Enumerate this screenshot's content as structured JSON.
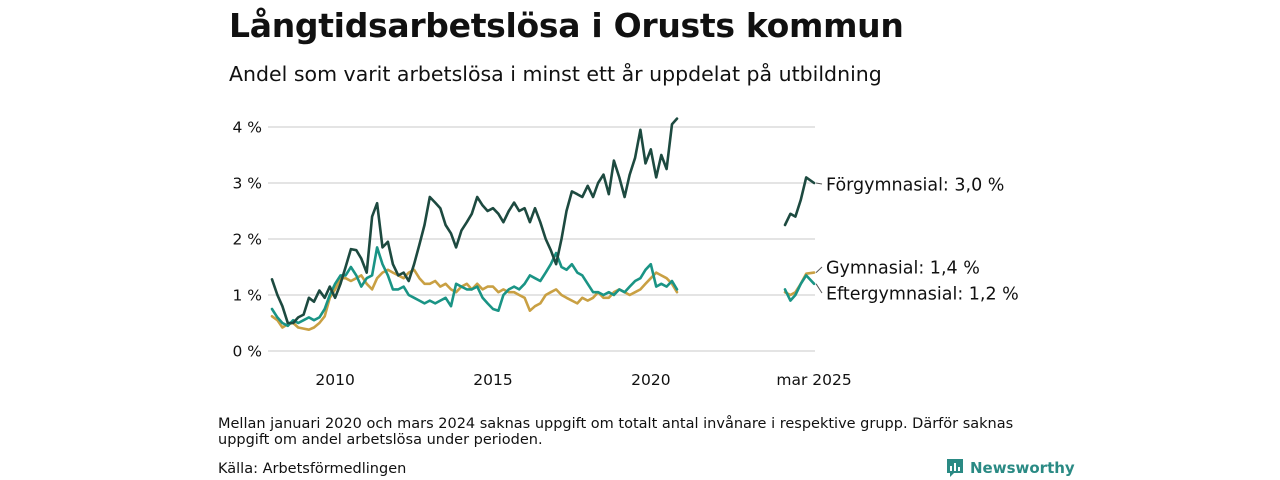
{
  "title": "Långtidsarbetslösa i Orusts kommun",
  "subtitle": "Andel som varit arbetslösa i minst ett år uppdelat på utbildning",
  "note": "Mellan januari 2020 och mars 2024 saknas uppgift om totalt antal invånare i respektive grupp. Därför saknas uppgift om andel arbetslösa under perioden.",
  "source": "Källa: Arbetsförmedlingen",
  "brand": {
    "name": "Newsworthy",
    "icon": "bar-chart-speech-bubble-icon",
    "color": "#2a8a84"
  },
  "chart_data": {
    "type": "line",
    "grid": "horizontal",
    "ylim": [
      0,
      4
    ],
    "y_ticks": [
      0,
      1,
      2,
      3,
      4
    ],
    "y_tick_labels": [
      "0 %",
      "1 %",
      "2 %",
      "3 %",
      "4 %"
    ],
    "x_ticks": [
      2010,
      2015,
      2020,
      2025.17
    ],
    "x_tick_labels": [
      "2010",
      "2015",
      "2020",
      "mar 2025"
    ],
    "xlim": [
      2008.0,
      2025.2
    ],
    "gap": [
      "2021-01",
      "2024-03"
    ],
    "series": [
      {
        "name": "Förgymnasial",
        "color": "#1d4a40",
        "end_label": "Förgymnasial: 3,0 %",
        "points": [
          [
            2008.0,
            1.28
          ],
          [
            2008.17,
            1.0
          ],
          [
            2008.33,
            0.8
          ],
          [
            2008.5,
            0.5
          ],
          [
            2008.67,
            0.5
          ],
          [
            2008.83,
            0.6
          ],
          [
            2009.0,
            0.65
          ],
          [
            2009.17,
            0.95
          ],
          [
            2009.33,
            0.88
          ],
          [
            2009.5,
            1.08
          ],
          [
            2009.67,
            0.95
          ],
          [
            2009.83,
            1.15
          ],
          [
            2010.0,
            0.95
          ],
          [
            2010.17,
            1.2
          ],
          [
            2010.33,
            1.5
          ],
          [
            2010.5,
            1.82
          ],
          [
            2010.67,
            1.8
          ],
          [
            2010.83,
            1.65
          ],
          [
            2011.0,
            1.4
          ],
          [
            2011.17,
            2.4
          ],
          [
            2011.33,
            2.64
          ],
          [
            2011.5,
            1.85
          ],
          [
            2011.67,
            1.95
          ],
          [
            2011.83,
            1.55
          ],
          [
            2012.0,
            1.35
          ],
          [
            2012.17,
            1.4
          ],
          [
            2012.33,
            1.25
          ],
          [
            2012.5,
            1.55
          ],
          [
            2012.67,
            1.9
          ],
          [
            2012.83,
            2.25
          ],
          [
            2013.0,
            2.75
          ],
          [
            2013.17,
            2.65
          ],
          [
            2013.33,
            2.55
          ],
          [
            2013.5,
            2.25
          ],
          [
            2013.67,
            2.1
          ],
          [
            2013.83,
            1.85
          ],
          [
            2014.0,
            2.15
          ],
          [
            2014.17,
            2.3
          ],
          [
            2014.33,
            2.45
          ],
          [
            2014.5,
            2.75
          ],
          [
            2014.67,
            2.6
          ],
          [
            2014.83,
            2.5
          ],
          [
            2015.0,
            2.55
          ],
          [
            2015.17,
            2.45
          ],
          [
            2015.33,
            2.3
          ],
          [
            2015.5,
            2.5
          ],
          [
            2015.67,
            2.65
          ],
          [
            2015.83,
            2.5
          ],
          [
            2016.0,
            2.55
          ],
          [
            2016.17,
            2.3
          ],
          [
            2016.33,
            2.55
          ],
          [
            2016.5,
            2.3
          ],
          [
            2016.67,
            2.0
          ],
          [
            2016.83,
            1.8
          ],
          [
            2017.0,
            1.55
          ],
          [
            2017.17,
            2.0
          ],
          [
            2017.33,
            2.5
          ],
          [
            2017.5,
            2.85
          ],
          [
            2017.67,
            2.8
          ],
          [
            2017.83,
            2.75
          ],
          [
            2018.0,
            2.95
          ],
          [
            2018.17,
            2.75
          ],
          [
            2018.33,
            3.0
          ],
          [
            2018.5,
            3.15
          ],
          [
            2018.67,
            2.8
          ],
          [
            2018.83,
            3.4
          ],
          [
            2019.0,
            3.1
          ],
          [
            2019.17,
            2.75
          ],
          [
            2019.33,
            3.15
          ],
          [
            2019.5,
            3.45
          ],
          [
            2019.67,
            3.95
          ],
          [
            2019.83,
            3.35
          ],
          [
            2020.0,
            3.6
          ],
          [
            2020.17,
            3.1
          ],
          [
            2020.33,
            3.5
          ],
          [
            2020.5,
            3.25
          ],
          [
            2020.67,
            4.05
          ],
          [
            2020.83,
            4.15
          ]
        ]
      },
      {
        "name": "Gymnasial",
        "color": "#c9a043",
        "end_label": "Gymnasial: 1,4 %",
        "points": [
          [
            2008.0,
            0.62
          ],
          [
            2008.17,
            0.55
          ],
          [
            2008.33,
            0.42
          ],
          [
            2008.5,
            0.48
          ],
          [
            2008.67,
            0.5
          ],
          [
            2008.83,
            0.42
          ],
          [
            2009.0,
            0.4
          ],
          [
            2009.17,
            0.38
          ],
          [
            2009.33,
            0.42
          ],
          [
            2009.5,
            0.5
          ],
          [
            2009.67,
            0.62
          ],
          [
            2009.83,
            0.95
          ],
          [
            2010.0,
            1.1
          ],
          [
            2010.17,
            1.3
          ],
          [
            2010.33,
            1.3
          ],
          [
            2010.5,
            1.25
          ],
          [
            2010.67,
            1.3
          ],
          [
            2010.83,
            1.35
          ],
          [
            2011.0,
            1.2
          ],
          [
            2011.17,
            1.1
          ],
          [
            2011.33,
            1.3
          ],
          [
            2011.5,
            1.4
          ],
          [
            2011.67,
            1.45
          ],
          [
            2011.83,
            1.4
          ],
          [
            2012.0,
            1.35
          ],
          [
            2012.17,
            1.3
          ],
          [
            2012.33,
            1.4
          ],
          [
            2012.5,
            1.45
          ],
          [
            2012.67,
            1.3
          ],
          [
            2012.83,
            1.2
          ],
          [
            2013.0,
            1.2
          ],
          [
            2013.17,
            1.25
          ],
          [
            2013.33,
            1.15
          ],
          [
            2013.5,
            1.2
          ],
          [
            2013.67,
            1.1
          ],
          [
            2013.83,
            1.05
          ],
          [
            2014.0,
            1.15
          ],
          [
            2014.17,
            1.2
          ],
          [
            2014.33,
            1.1
          ],
          [
            2014.5,
            1.2
          ],
          [
            2014.67,
            1.1
          ],
          [
            2014.83,
            1.15
          ],
          [
            2015.0,
            1.15
          ],
          [
            2015.17,
            1.05
          ],
          [
            2015.33,
            1.1
          ],
          [
            2015.5,
            1.05
          ],
          [
            2015.67,
            1.05
          ],
          [
            2015.83,
            1.0
          ],
          [
            2016.0,
            0.95
          ],
          [
            2016.17,
            0.72
          ],
          [
            2016.33,
            0.8
          ],
          [
            2016.5,
            0.85
          ],
          [
            2016.67,
            1.0
          ],
          [
            2016.83,
            1.05
          ],
          [
            2017.0,
            1.1
          ],
          [
            2017.17,
            1.0
          ],
          [
            2017.33,
            0.95
          ],
          [
            2017.5,
            0.9
          ],
          [
            2017.67,
            0.85
          ],
          [
            2017.83,
            0.95
          ],
          [
            2018.0,
            0.9
          ],
          [
            2018.17,
            0.95
          ],
          [
            2018.33,
            1.05
          ],
          [
            2018.5,
            0.95
          ],
          [
            2018.67,
            0.95
          ],
          [
            2018.83,
            1.05
          ],
          [
            2019.0,
            1.1
          ],
          [
            2019.17,
            1.05
          ],
          [
            2019.33,
            1.0
          ],
          [
            2019.5,
            1.05
          ],
          [
            2019.67,
            1.1
          ],
          [
            2019.83,
            1.2
          ],
          [
            2020.0,
            1.3
          ],
          [
            2020.17,
            1.4
          ],
          [
            2020.33,
            1.35
          ],
          [
            2020.5,
            1.3
          ],
          [
            2020.67,
            1.2
          ],
          [
            2020.83,
            1.05
          ],
          [
            2024.25,
            1.05
          ],
          [
            2024.42,
            1.0
          ],
          [
            2024.58,
            1.05
          ],
          [
            2024.75,
            1.2
          ],
          [
            2024.92,
            1.38
          ],
          [
            2025.17,
            1.4
          ]
        ]
      },
      {
        "name": "Eftergymnasial",
        "color": "#1a9485",
        "end_label": "Eftergymnasial: 1,2 %",
        "points": [
          [
            2008.0,
            0.75
          ],
          [
            2008.17,
            0.6
          ],
          [
            2008.33,
            0.5
          ],
          [
            2008.5,
            0.45
          ],
          [
            2008.67,
            0.55
          ],
          [
            2008.83,
            0.5
          ],
          [
            2009.0,
            0.55
          ],
          [
            2009.17,
            0.6
          ],
          [
            2009.33,
            0.55
          ],
          [
            2009.5,
            0.6
          ],
          [
            2009.67,
            0.75
          ],
          [
            2009.83,
            1.0
          ],
          [
            2010.0,
            1.2
          ],
          [
            2010.17,
            1.35
          ],
          [
            2010.33,
            1.35
          ],
          [
            2010.5,
            1.5
          ],
          [
            2010.67,
            1.35
          ],
          [
            2010.83,
            1.15
          ],
          [
            2011.0,
            1.3
          ],
          [
            2011.17,
            1.35
          ],
          [
            2011.33,
            1.85
          ],
          [
            2011.5,
            1.55
          ],
          [
            2011.67,
            1.35
          ],
          [
            2011.83,
            1.1
          ],
          [
            2012.0,
            1.1
          ],
          [
            2012.17,
            1.15
          ],
          [
            2012.33,
            1.0
          ],
          [
            2012.5,
            0.95
          ],
          [
            2012.67,
            0.9
          ],
          [
            2012.83,
            0.85
          ],
          [
            2013.0,
            0.9
          ],
          [
            2013.17,
            0.85
          ],
          [
            2013.33,
            0.9
          ],
          [
            2013.5,
            0.95
          ],
          [
            2013.67,
            0.8
          ],
          [
            2013.83,
            1.2
          ],
          [
            2014.0,
            1.15
          ],
          [
            2014.17,
            1.1
          ],
          [
            2014.33,
            1.1
          ],
          [
            2014.5,
            1.15
          ],
          [
            2014.67,
            0.95
          ],
          [
            2014.83,
            0.85
          ],
          [
            2015.0,
            0.75
          ],
          [
            2015.17,
            0.72
          ],
          [
            2015.33,
            1.0
          ],
          [
            2015.5,
            1.1
          ],
          [
            2015.67,
            1.15
          ],
          [
            2015.83,
            1.1
          ],
          [
            2016.0,
            1.2
          ],
          [
            2016.17,
            1.35
          ],
          [
            2016.33,
            1.3
          ],
          [
            2016.5,
            1.25
          ],
          [
            2016.67,
            1.4
          ],
          [
            2016.83,
            1.55
          ],
          [
            2017.0,
            1.75
          ],
          [
            2017.17,
            1.5
          ],
          [
            2017.33,
            1.45
          ],
          [
            2017.5,
            1.55
          ],
          [
            2017.67,
            1.4
          ],
          [
            2017.83,
            1.35
          ],
          [
            2018.0,
            1.2
          ],
          [
            2018.17,
            1.05
          ],
          [
            2018.33,
            1.05
          ],
          [
            2018.5,
            1.0
          ],
          [
            2018.67,
            1.05
          ],
          [
            2018.83,
            1.0
          ],
          [
            2019.0,
            1.1
          ],
          [
            2019.17,
            1.05
          ],
          [
            2019.33,
            1.15
          ],
          [
            2019.5,
            1.25
          ],
          [
            2019.67,
            1.3
          ],
          [
            2019.83,
            1.45
          ],
          [
            2020.0,
            1.55
          ],
          [
            2020.17,
            1.15
          ],
          [
            2020.33,
            1.2
          ],
          [
            2020.5,
            1.15
          ],
          [
            2020.67,
            1.25
          ],
          [
            2020.83,
            1.1
          ],
          [
            2024.25,
            1.1
          ],
          [
            2024.42,
            0.9
          ],
          [
            2024.58,
            1.0
          ],
          [
            2024.75,
            1.2
          ],
          [
            2024.92,
            1.35
          ],
          [
            2025.17,
            1.2
          ]
        ]
      },
      {
        "name": "Förgymnasial (2024–2025)",
        "color": "#1d4a40",
        "continuation_of": "Förgymnasial",
        "points": [
          [
            2024.25,
            2.25
          ],
          [
            2024.42,
            2.45
          ],
          [
            2024.58,
            2.4
          ],
          [
            2024.75,
            2.7
          ],
          [
            2024.92,
            3.1
          ],
          [
            2025.17,
            3.0
          ]
        ]
      }
    ]
  }
}
